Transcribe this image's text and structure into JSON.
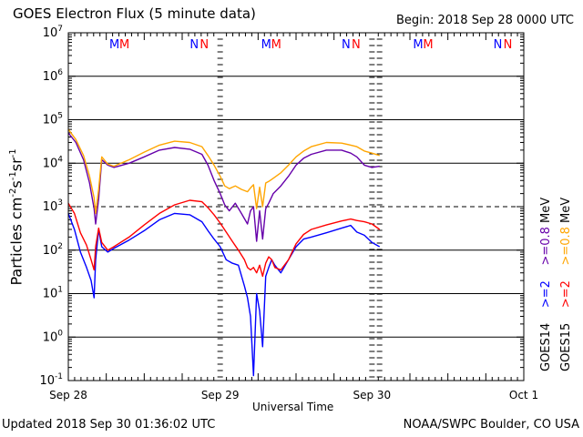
{
  "title": "GOES Electron Flux (5 minute data)",
  "begin_label": "Begin: 2018 Sep 28 0000 UTC",
  "updated_label": "Updated 2018 Sep 30 01:36:02 UTC",
  "credit": "NOAA/SWPC Boulder, CO USA",
  "colors": {
    "goes14_high": "#0000ff",
    "goes15_high": "#ff0000",
    "goes14_low": "#6600aa",
    "goes15_low": "#ffa500",
    "mark_m": [
      "#0000ff",
      "#ff0000"
    ],
    "mark_n": [
      "#0000ff",
      "#ff0000"
    ]
  },
  "right_legend": {
    "goes14": "GOES14",
    "goes15": "GOES15",
    "g14_hi": ">=2",
    "g15_hi": ">=2",
    "g14_lo": ">=0.8",
    "g15_lo": ">=0.8",
    "unit": "MeV"
  },
  "chart_data": {
    "type": "line",
    "xlabel": "Universal Time",
    "ylabel": "Particles cm",
    "ylabel_parts": [
      "Particles cm",
      "-2",
      "s",
      "-1",
      "sr",
      "-1"
    ],
    "yscale": "log",
    "ylim": [
      0.1,
      10000000
    ],
    "yticks": [
      {
        "base": "10",
        "exp": "7"
      },
      {
        "base": "10",
        "exp": "6"
      },
      {
        "base": "10",
        "exp": "5"
      },
      {
        "base": "10",
        "exp": "4"
      },
      {
        "base": "10",
        "exp": "3"
      },
      {
        "base": "10",
        "exp": "2"
      },
      {
        "base": "10",
        "exp": "1"
      },
      {
        "base": "10",
        "exp": "0"
      },
      {
        "base": "10",
        "exp": "-1"
      }
    ],
    "xlim_days": [
      0,
      3
    ],
    "xticks": [
      "Sep 28",
      "Sep 29",
      "Sep 30",
      "Oct 1"
    ],
    "alert_threshold": 1000,
    "grid": true,
    "day_marks": [
      {
        "m": [
          "M",
          "M"
        ],
        "n": [
          "N",
          "N"
        ]
      },
      {
        "m": [
          "M",
          "M"
        ],
        "n": [
          "N",
          "N"
        ]
      },
      {
        "m": [
          "M",
          "M"
        ],
        "n": [
          "N",
          "N"
        ]
      }
    ],
    "series": [
      {
        "name": "GOES14 >=0.8 MeV",
        "color": "#6600aa",
        "x": [
          0.0,
          0.05,
          0.1,
          0.14,
          0.17,
          0.18,
          0.2,
          0.22,
          0.26,
          0.3,
          0.4,
          0.5,
          0.6,
          0.7,
          0.8,
          0.88,
          0.92,
          0.96,
          1.0,
          1.03,
          1.06,
          1.1,
          1.14,
          1.18,
          1.2,
          1.22,
          1.24,
          1.26,
          1.28,
          1.3,
          1.32,
          1.35,
          1.4,
          1.45,
          1.5,
          1.55,
          1.6,
          1.7,
          1.8,
          1.86,
          1.9,
          1.95,
          2.0,
          2.05
        ],
        "y": [
          50000,
          30000,
          12000,
          3500,
          900,
          400,
          1500,
          12000,
          9000,
          8000,
          10000,
          14000,
          20000,
          23000,
          21000,
          16000,
          9000,
          4000,
          2000,
          1100,
          800,
          1200,
          700,
          400,
          800,
          1000,
          160,
          800,
          180,
          900,
          1200,
          2000,
          3000,
          5000,
          9000,
          13000,
          16000,
          20000,
          20000,
          17000,
          14000,
          9000,
          8000,
          8500
        ]
      },
      {
        "name": "GOES15 >=0.8 MeV",
        "color": "#ffa500",
        "x": [
          0.0,
          0.05,
          0.1,
          0.14,
          0.17,
          0.18,
          0.2,
          0.22,
          0.26,
          0.3,
          0.4,
          0.5,
          0.6,
          0.7,
          0.8,
          0.88,
          0.92,
          0.96,
          1.0,
          1.03,
          1.06,
          1.1,
          1.14,
          1.18,
          1.2,
          1.22,
          1.24,
          1.26,
          1.28,
          1.3,
          1.32,
          1.35,
          1.4,
          1.45,
          1.5,
          1.55,
          1.6,
          1.7,
          1.8,
          1.86,
          1.9,
          1.95,
          2.0,
          2.05
        ],
        "y": [
          60000,
          35000,
          15000,
          5000,
          1600,
          700,
          2500,
          14000,
          9500,
          8500,
          12000,
          18000,
          26000,
          32000,
          30000,
          24000,
          15000,
          9000,
          5000,
          3000,
          2600,
          3000,
          2500,
          2200,
          2700,
          3200,
          900,
          2800,
          1000,
          3500,
          3800,
          4500,
          6000,
          9000,
          14000,
          19000,
          24000,
          30000,
          29000,
          26000,
          24000,
          19000,
          17000,
          15000
        ]
      },
      {
        "name": "GOES14 >=2 MeV",
        "color": "#0000ff",
        "x": [
          0.0,
          0.04,
          0.08,
          0.12,
          0.15,
          0.17,
          0.18,
          0.2,
          0.22,
          0.26,
          0.3,
          0.4,
          0.5,
          0.6,
          0.7,
          0.8,
          0.88,
          0.92,
          0.96,
          1.0,
          1.04,
          1.08,
          1.12,
          1.16,
          1.18,
          1.2,
          1.22,
          1.24,
          1.26,
          1.28,
          1.3,
          1.32,
          1.34,
          1.36,
          1.4,
          1.45,
          1.5,
          1.55,
          1.6,
          1.7,
          1.8,
          1.86,
          1.9,
          1.95,
          2.0,
          2.05
        ],
        "y": [
          700,
          300,
          90,
          40,
          20,
          8,
          60,
          300,
          120,
          90,
          110,
          170,
          280,
          500,
          700,
          650,
          450,
          280,
          180,
          120,
          60,
          50,
          45,
          15,
          8,
          3,
          0.13,
          10,
          4,
          0.6,
          25,
          40,
          60,
          45,
          30,
          60,
          120,
          180,
          200,
          250,
          320,
          370,
          260,
          220,
          150,
          120
        ]
      },
      {
        "name": "GOES15 >=2 MeV",
        "color": "#ff0000",
        "x": [
          0.0,
          0.04,
          0.08,
          0.12,
          0.15,
          0.17,
          0.18,
          0.2,
          0.22,
          0.26,
          0.3,
          0.4,
          0.5,
          0.6,
          0.7,
          0.8,
          0.88,
          0.92,
          0.96,
          1.0,
          1.04,
          1.08,
          1.12,
          1.16,
          1.18,
          1.2,
          1.22,
          1.24,
          1.26,
          1.28,
          1.3,
          1.32,
          1.34,
          1.36,
          1.4,
          1.45,
          1.5,
          1.55,
          1.6,
          1.7,
          1.8,
          1.86,
          1.9,
          1.95,
          2.0,
          2.05
        ],
        "y": [
          1200,
          700,
          250,
          130,
          60,
          35,
          120,
          320,
          150,
          100,
          120,
          200,
          380,
          700,
          1100,
          1400,
          1300,
          950,
          650,
          420,
          260,
          160,
          100,
          60,
          40,
          35,
          40,
          30,
          45,
          25,
          50,
          70,
          60,
          40,
          35,
          60,
          140,
          230,
          300,
          380,
          470,
          520,
          480,
          450,
          400,
          300
        ]
      }
    ]
  }
}
